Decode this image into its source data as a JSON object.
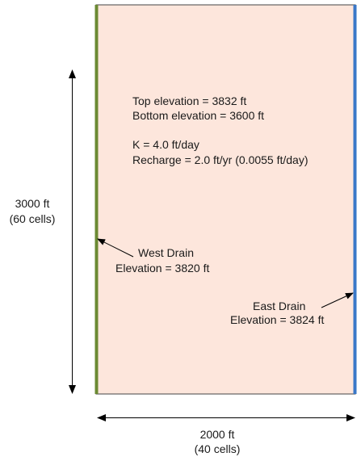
{
  "domain_box": {
    "fill": "#fde6dc",
    "border": "#444444"
  },
  "west_drain": {
    "color": "#6b8a33",
    "label": "West Drain",
    "elevation": "Elevation = 3820 ft"
  },
  "east_drain": {
    "color": "#3a78c8",
    "label": "East Drain",
    "elevation": "Elevation = 3824 ft"
  },
  "properties": {
    "top_elevation": "Top elevation = 3832 ft",
    "bottom_elevation": "Bottom elevation = 3600 ft",
    "k": "K = 4.0 ft/day",
    "recharge": "Recharge = 2.0 ft/yr (0.0055 ft/day)"
  },
  "dimensions": {
    "height_ft": "3000 ft",
    "height_cells": "(60 cells)",
    "width_ft": "2000 ft",
    "width_cells": "(40 cells)"
  }
}
